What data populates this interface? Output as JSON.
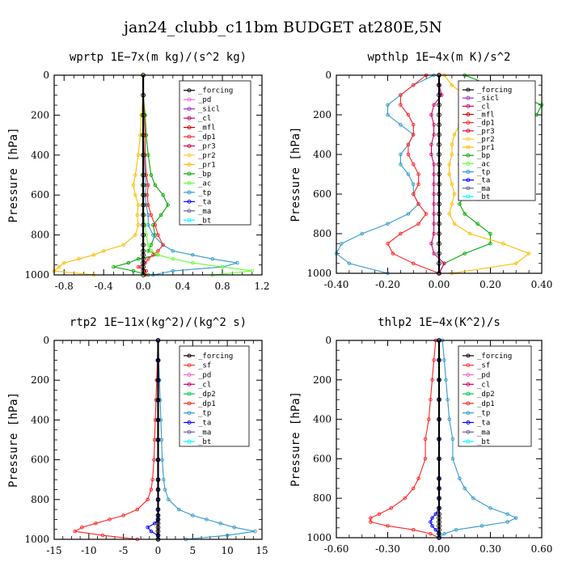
{
  "figure_title": "jan24_clubb_c11bm  BUDGET at280E,5N",
  "colors": {
    "_forcing": "#000000",
    "_pd": "#ff66cc",
    "_sicl": "#9933cc",
    "_cl": "#cc0066",
    "_mfl": "#cc0000",
    "_dp1": "#ff2222",
    "_pr3": "#dd0044",
    "_pr2": "#ffcc33",
    "_pr1": "#ffbb00",
    "_bp": "#00aa00",
    "_ac": "#66ff33",
    "_tp": "#3399cc",
    "_ta": "#0000ff",
    "_ma": "#666699",
    "_bt": "#00ffff",
    "_sf": "#ff3333",
    "_dp2": "#00cc44"
  },
  "chart_data": [
    {
      "type": "line",
      "title": "wprtp  1E−7x(m kg)/(s^2 kg)",
      "xlabel": "",
      "ylabel": "Pressure [hPa]",
      "xlim": [
        -0.9,
        1.2
      ],
      "ylim": [
        1000,
        0
      ],
      "xticks": [
        -0.8,
        -0.4,
        0.0,
        0.4,
        0.8,
        1.2
      ],
      "xtick_labels": [
        "-0.8",
        "-0.4",
        "0.0",
        "0.4",
        "0.8",
        "1.2"
      ],
      "yticks": [
        0,
        200,
        400,
        600,
        800,
        1000
      ],
      "ytick_labels": [
        "0",
        "200",
        "400",
        "600",
        "800",
        "1000"
      ],
      "legend_position": "top-right",
      "legend": [
        "_forcing",
        "_pd",
        "_sicl",
        "_cl",
        "_mfl",
        "_dp1",
        "_pr3",
        "_pr2",
        "_pr1",
        "_bp",
        "_ac",
        "_tp",
        "_ta",
        "_ma",
        "_bt"
      ],
      "pressure": [
        0,
        100,
        200,
        300,
        400,
        500,
        550,
        600,
        650,
        700,
        750,
        800,
        850,
        880,
        900,
        920,
        940,
        960,
        980,
        1000
      ],
      "series": [
        {
          "name": "_bp",
          "values": [
            0,
            0,
            0.02,
            0.03,
            0.05,
            0.08,
            0.12,
            0.2,
            0.25,
            0.18,
            0.1,
            0.12,
            0.08,
            0.05,
            0.15,
            -0.05,
            -0.15,
            -0.3,
            -0.1,
            0.05
          ]
        },
        {
          "name": "_pr1",
          "values": [
            0,
            0,
            -0.02,
            -0.03,
            -0.05,
            -0.08,
            -0.1,
            -0.08,
            -0.05,
            -0.06,
            -0.05,
            -0.08,
            -0.2,
            -0.4,
            -0.5,
            -0.65,
            -0.8,
            -0.85,
            -0.9,
            -0.5
          ]
        },
        {
          "name": "_tp",
          "values": [
            0,
            0,
            0,
            0,
            0.01,
            0.02,
            0.03,
            0.02,
            0.03,
            0.05,
            0.05,
            0.1,
            0.2,
            0.3,
            0.5,
            0.7,
            0.95,
            0.8,
            0.3,
            0.1
          ]
        },
        {
          "name": "_dp1",
          "values": [
            0,
            0,
            0.01,
            0.02,
            0.02,
            0.03,
            0.05,
            0.04,
            0.05,
            0.08,
            0.12,
            0.15,
            0.2,
            0.15,
            0.1,
            0.05,
            0.02,
            -0.05,
            0.03,
            0.02
          ]
        },
        {
          "name": "_ac",
          "values": [
            0,
            0,
            0,
            0,
            0,
            0,
            0,
            0,
            0,
            0,
            0.02,
            0.03,
            0.05,
            0.08,
            0.15,
            0.3,
            0.5,
            0.8,
            1.1,
            0.7
          ]
        },
        {
          "name": "_forcing",
          "values": [
            0,
            0,
            0,
            0,
            0,
            0,
            0,
            0,
            0,
            0,
            0,
            0,
            0,
            0,
            0,
            0,
            0,
            0,
            0,
            0
          ]
        }
      ]
    },
    {
      "type": "line",
      "title": "wpthlp  1E−4x(m K)/s^2",
      "xlabel": "",
      "ylabel": "Pressure [hPa]",
      "xlim": [
        -0.4,
        0.4
      ],
      "ylim": [
        1000,
        0
      ],
      "xticks": [
        -0.4,
        -0.2,
        0.0,
        0.2,
        0.4
      ],
      "xtick_labels": [
        "-0.40",
        "-0.20",
        "0.00",
        "0.20",
        "0.40"
      ],
      "yticks": [
        0,
        200,
        400,
        600,
        800,
        1000
      ],
      "ytick_labels": [
        "0",
        "200",
        "400",
        "600",
        "800",
        "1000"
      ],
      "legend_position": "top-right",
      "legend": [
        "_forcing",
        "_sicl",
        "_cl",
        "_mfl",
        "_dp1",
        "_pr3",
        "_pr2",
        "_pr1",
        "_bp",
        "_ac",
        "_tp",
        "_ta",
        "_ma",
        "_bt"
      ],
      "pressure": [
        0,
        50,
        100,
        150,
        200,
        250,
        300,
        350,
        400,
        450,
        500,
        550,
        600,
        650,
        700,
        750,
        800,
        850,
        900,
        950,
        1000
      ],
      "series": [
        {
          "name": "_tp",
          "values": [
            -0.02,
            -0.1,
            -0.15,
            -0.2,
            -0.2,
            -0.15,
            -0.1,
            -0.12,
            -0.15,
            -0.15,
            -0.12,
            -0.1,
            -0.1,
            -0.08,
            -0.12,
            -0.2,
            -0.3,
            -0.38,
            -0.4,
            -0.35,
            -0.2
          ]
        },
        {
          "name": "_bp",
          "values": [
            0.1,
            0.2,
            0.3,
            0.4,
            0.38,
            0.25,
            0.15,
            0.1,
            0.08,
            0.08,
            0.1,
            0.12,
            0.1,
            0.08,
            0.1,
            0.15,
            0.2,
            0.2,
            0.1,
            0.02,
            0.0
          ]
        },
        {
          "name": "_dp1",
          "values": [
            -0.05,
            -0.1,
            -0.15,
            -0.15,
            -0.12,
            -0.1,
            -0.1,
            -0.12,
            -0.12,
            -0.1,
            -0.08,
            -0.08,
            -0.1,
            -0.08,
            -0.05,
            -0.08,
            -0.15,
            -0.2,
            -0.18,
            -0.1,
            0.0
          ]
        },
        {
          "name": "_pr1",
          "values": [
            0.02,
            0.05,
            0.1,
            0.15,
            0.12,
            0.08,
            0.06,
            0.05,
            0.05,
            0.04,
            0.04,
            0.05,
            0.06,
            0.05,
            0.04,
            0.06,
            0.12,
            0.25,
            0.35,
            0.3,
            0.05
          ]
        },
        {
          "name": "_cl",
          "values": [
            0,
            0,
            0.01,
            -0.02,
            -0.03,
            -0.02,
            -0.02,
            -0.03,
            -0.03,
            -0.02,
            -0.02,
            -0.02,
            -0.02,
            -0.02,
            -0.02,
            -0.02,
            -0.02,
            -0.03,
            -0.02,
            0.02,
            0.0
          ]
        },
        {
          "name": "_forcing",
          "values": [
            0,
            0,
            0,
            0,
            0,
            0,
            0,
            0,
            0,
            0,
            0,
            0,
            0,
            0,
            0,
            0,
            0,
            0,
            0,
            0,
            0
          ]
        }
      ]
    },
    {
      "type": "line",
      "title": "rtp2  1E−11x(kg^2)/(kg^2 s)",
      "xlabel": "",
      "ylabel": "Pressure [hPa]",
      "xlim": [
        -15,
        15
      ],
      "ylim": [
        1000,
        0
      ],
      "xticks": [
        -15,
        -10,
        -5,
        0,
        5,
        10,
        15
      ],
      "xtick_labels": [
        "-15",
        "-10",
        "-5",
        "0",
        "5",
        "10",
        "15"
      ],
      "yticks": [
        0,
        200,
        400,
        600,
        800,
        1000
      ],
      "ytick_labels": [
        "0",
        "200",
        "400",
        "600",
        "800",
        "1000"
      ],
      "legend_position": "top-right",
      "legend": [
        "_forcing",
        "_sf",
        "_pd",
        "_cl",
        "_dp2",
        "_dp1",
        "_tp",
        "_ta",
        "_ma",
        "_bt"
      ],
      "pressure": [
        0,
        100,
        200,
        300,
        400,
        500,
        600,
        700,
        750,
        800,
        850,
        880,
        900,
        920,
        940,
        960,
        980,
        1000
      ],
      "series": [
        {
          "name": "_dp1",
          "values": [
            0,
            -0.1,
            -0.2,
            -0.3,
            -0.4,
            -0.5,
            -0.6,
            -0.8,
            -1.0,
            -1.5,
            -3,
            -5,
            -7,
            -9,
            -11,
            -12,
            -8,
            -3
          ]
        },
        {
          "name": "_tp",
          "values": [
            0,
            0.1,
            0.2,
            0.3,
            0.4,
            0.5,
            0.6,
            0.8,
            1.0,
            1.5,
            3,
            5,
            7,
            9,
            11,
            14,
            10,
            4
          ]
        },
        {
          "name": "_ta",
          "values": [
            0,
            0,
            0,
            0,
            0,
            0,
            0,
            0,
            0,
            0,
            0,
            0,
            0,
            -0.5,
            -1.5,
            -1,
            0,
            0
          ]
        },
        {
          "name": "_forcing",
          "values": [
            0,
            0,
            0,
            0,
            0,
            0,
            0,
            0,
            0,
            0,
            0,
            0,
            0,
            0,
            0,
            0,
            0,
            0
          ]
        }
      ]
    },
    {
      "type": "line",
      "title": "thlp2  1E−4x(K^2)/s",
      "xlabel": "",
      "ylabel": "Pressure [hPa]",
      "xlim": [
        -0.6,
        0.6
      ],
      "ylim": [
        1000,
        0
      ],
      "xticks": [
        -0.6,
        -0.3,
        0.0,
        0.3,
        0.6
      ],
      "xtick_labels": [
        "-0.60",
        "-0.30",
        "0.00",
        "0.30",
        "0.60"
      ],
      "yticks": [
        0,
        200,
        400,
        600,
        800,
        1000
      ],
      "ytick_labels": [
        "0",
        "200",
        "400",
        "600",
        "800",
        "1000"
      ],
      "legend_position": "top-right",
      "legend": [
        "_forcing",
        "_sf",
        "_pd",
        "_cl",
        "_dp2",
        "_dp1",
        "_tp",
        "_ta",
        "_ma",
        "_bt"
      ],
      "pressure": [
        0,
        100,
        200,
        300,
        400,
        500,
        600,
        700,
        750,
        800,
        850,
        880,
        900,
        920,
        940,
        960,
        980,
        1000
      ],
      "series": [
        {
          "name": "_dp1",
          "values": [
            -0.02,
            -0.03,
            -0.04,
            -0.05,
            -0.06,
            -0.08,
            -0.08,
            -0.12,
            -0.15,
            -0.2,
            -0.28,
            -0.35,
            -0.4,
            -0.4,
            -0.3,
            -0.15,
            -0.05,
            0.0
          ]
        },
        {
          "name": "_tp",
          "values": [
            0.02,
            0.03,
            0.04,
            0.05,
            0.06,
            0.08,
            0.08,
            0.12,
            0.15,
            0.2,
            0.3,
            0.4,
            0.45,
            0.4,
            0.25,
            0.1,
            0.03,
            0.0
          ]
        },
        {
          "name": "_ta",
          "values": [
            0,
            0,
            0,
            0,
            0,
            0,
            0,
            0,
            0,
            0,
            0,
            -0.02,
            -0.04,
            -0.05,
            -0.04,
            -0.02,
            0,
            0
          ]
        },
        {
          "name": "_forcing",
          "values": [
            0,
            0,
            0,
            0,
            0,
            0,
            0,
            0,
            0,
            0,
            0,
            0,
            0,
            0,
            0,
            0,
            0,
            0
          ]
        }
      ]
    }
  ]
}
